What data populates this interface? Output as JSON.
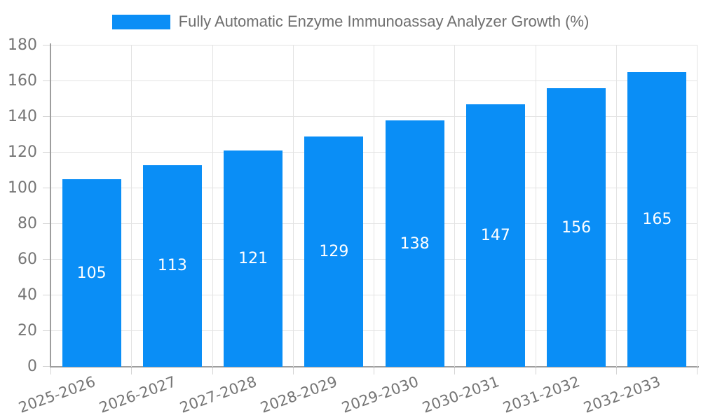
{
  "chart_data": {
    "type": "bar",
    "title": "Fully Automatic Enzyme Immunoassay Analyzer Growth (%)",
    "categories": [
      "2025-2026",
      "2026-2027",
      "2027-2028",
      "2028-2029",
      "2029-2030",
      "2030-2031",
      "2031-2032",
      "2032-2033"
    ],
    "values": [
      105,
      113,
      121,
      129,
      138,
      147,
      156,
      165
    ],
    "xlabel": "",
    "ylabel": "",
    "ylim": [
      0,
      180
    ],
    "ytick_step": 20,
    "ytick_labels": [
      "0",
      "20",
      "40",
      "60",
      "80",
      "100",
      "120",
      "140",
      "160",
      "180"
    ],
    "grid": true,
    "legend_position": "top-center",
    "value_labels": "inside-center",
    "x_label_rotation_deg": -20
  },
  "colors": {
    "bar": "#0a8ef6",
    "grid": "#e3e3e3",
    "axis": "#9e9e9e",
    "tick": "#d4d4d4",
    "axis_text": "#757575",
    "title_text": "#6f6f6f",
    "value_text": "#ffffff",
    "background": "#ffffff"
  }
}
